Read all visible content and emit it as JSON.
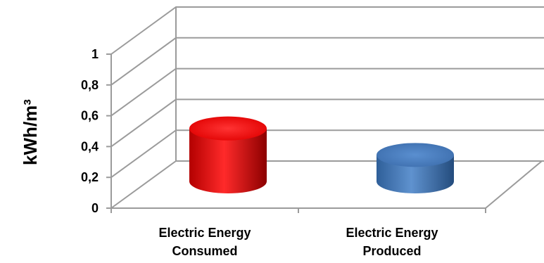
{
  "chart_data": {
    "type": "bar",
    "style": "3d-cylinder",
    "categories": [
      [
        "Electric Energy",
        "Consumed"
      ],
      [
        "Electric Energy",
        "Produced"
      ]
    ],
    "series": [
      {
        "values": [
          0.4,
          0.2
        ]
      }
    ],
    "bar_colors": [
      "#ff0000",
      "#4f81bd"
    ],
    "ylabel": "kWh/m³",
    "ylim": [
      0,
      1
    ],
    "yticks": [
      "0",
      "0,2",
      "0,4",
      "0,6",
      "0,8",
      "1"
    ],
    "grid": true,
    "legend": false
  }
}
